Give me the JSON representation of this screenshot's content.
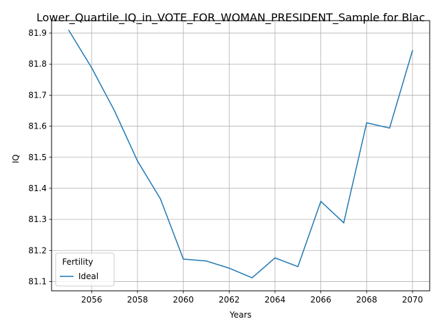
{
  "chart_data": {
    "type": "line",
    "title": "Lower_Quartile_IQ_in_VOTE_FOR_WOMAN_PRESIDENT_Sample for Blac",
    "xlabel": "Years",
    "ylabel": "IQ",
    "xlim": [
      2054.25,
      2070.75
    ],
    "ylim": [
      81.07,
      81.94
    ],
    "xticks": [
      2056,
      2058,
      2060,
      2062,
      2064,
      2066,
      2068,
      2070
    ],
    "yticks": [
      81.1,
      81.2,
      81.3,
      81.4,
      81.5,
      81.6,
      81.7,
      81.8,
      81.9
    ],
    "ytick_labels": [
      "81.1",
      "81.2",
      "81.3",
      "81.4",
      "81.5",
      "81.6",
      "81.7",
      "81.8",
      "81.9"
    ],
    "grid": true,
    "legend": {
      "title": "Fertility",
      "placement": "lower-left"
    },
    "series": [
      {
        "name": "Ideal",
        "color": "#1f77b4",
        "x": [
          2055,
          2056,
          2057,
          2058,
          2059,
          2060,
          2061,
          2062,
          2063,
          2064,
          2065,
          2066,
          2067,
          2068,
          2069,
          2070
        ],
        "values": [
          81.909,
          81.788,
          81.649,
          81.488,
          81.366,
          81.172,
          81.166,
          81.143,
          81.112,
          81.176,
          81.148,
          81.358,
          81.289,
          81.611,
          81.594,
          81.844
        ]
      }
    ]
  }
}
